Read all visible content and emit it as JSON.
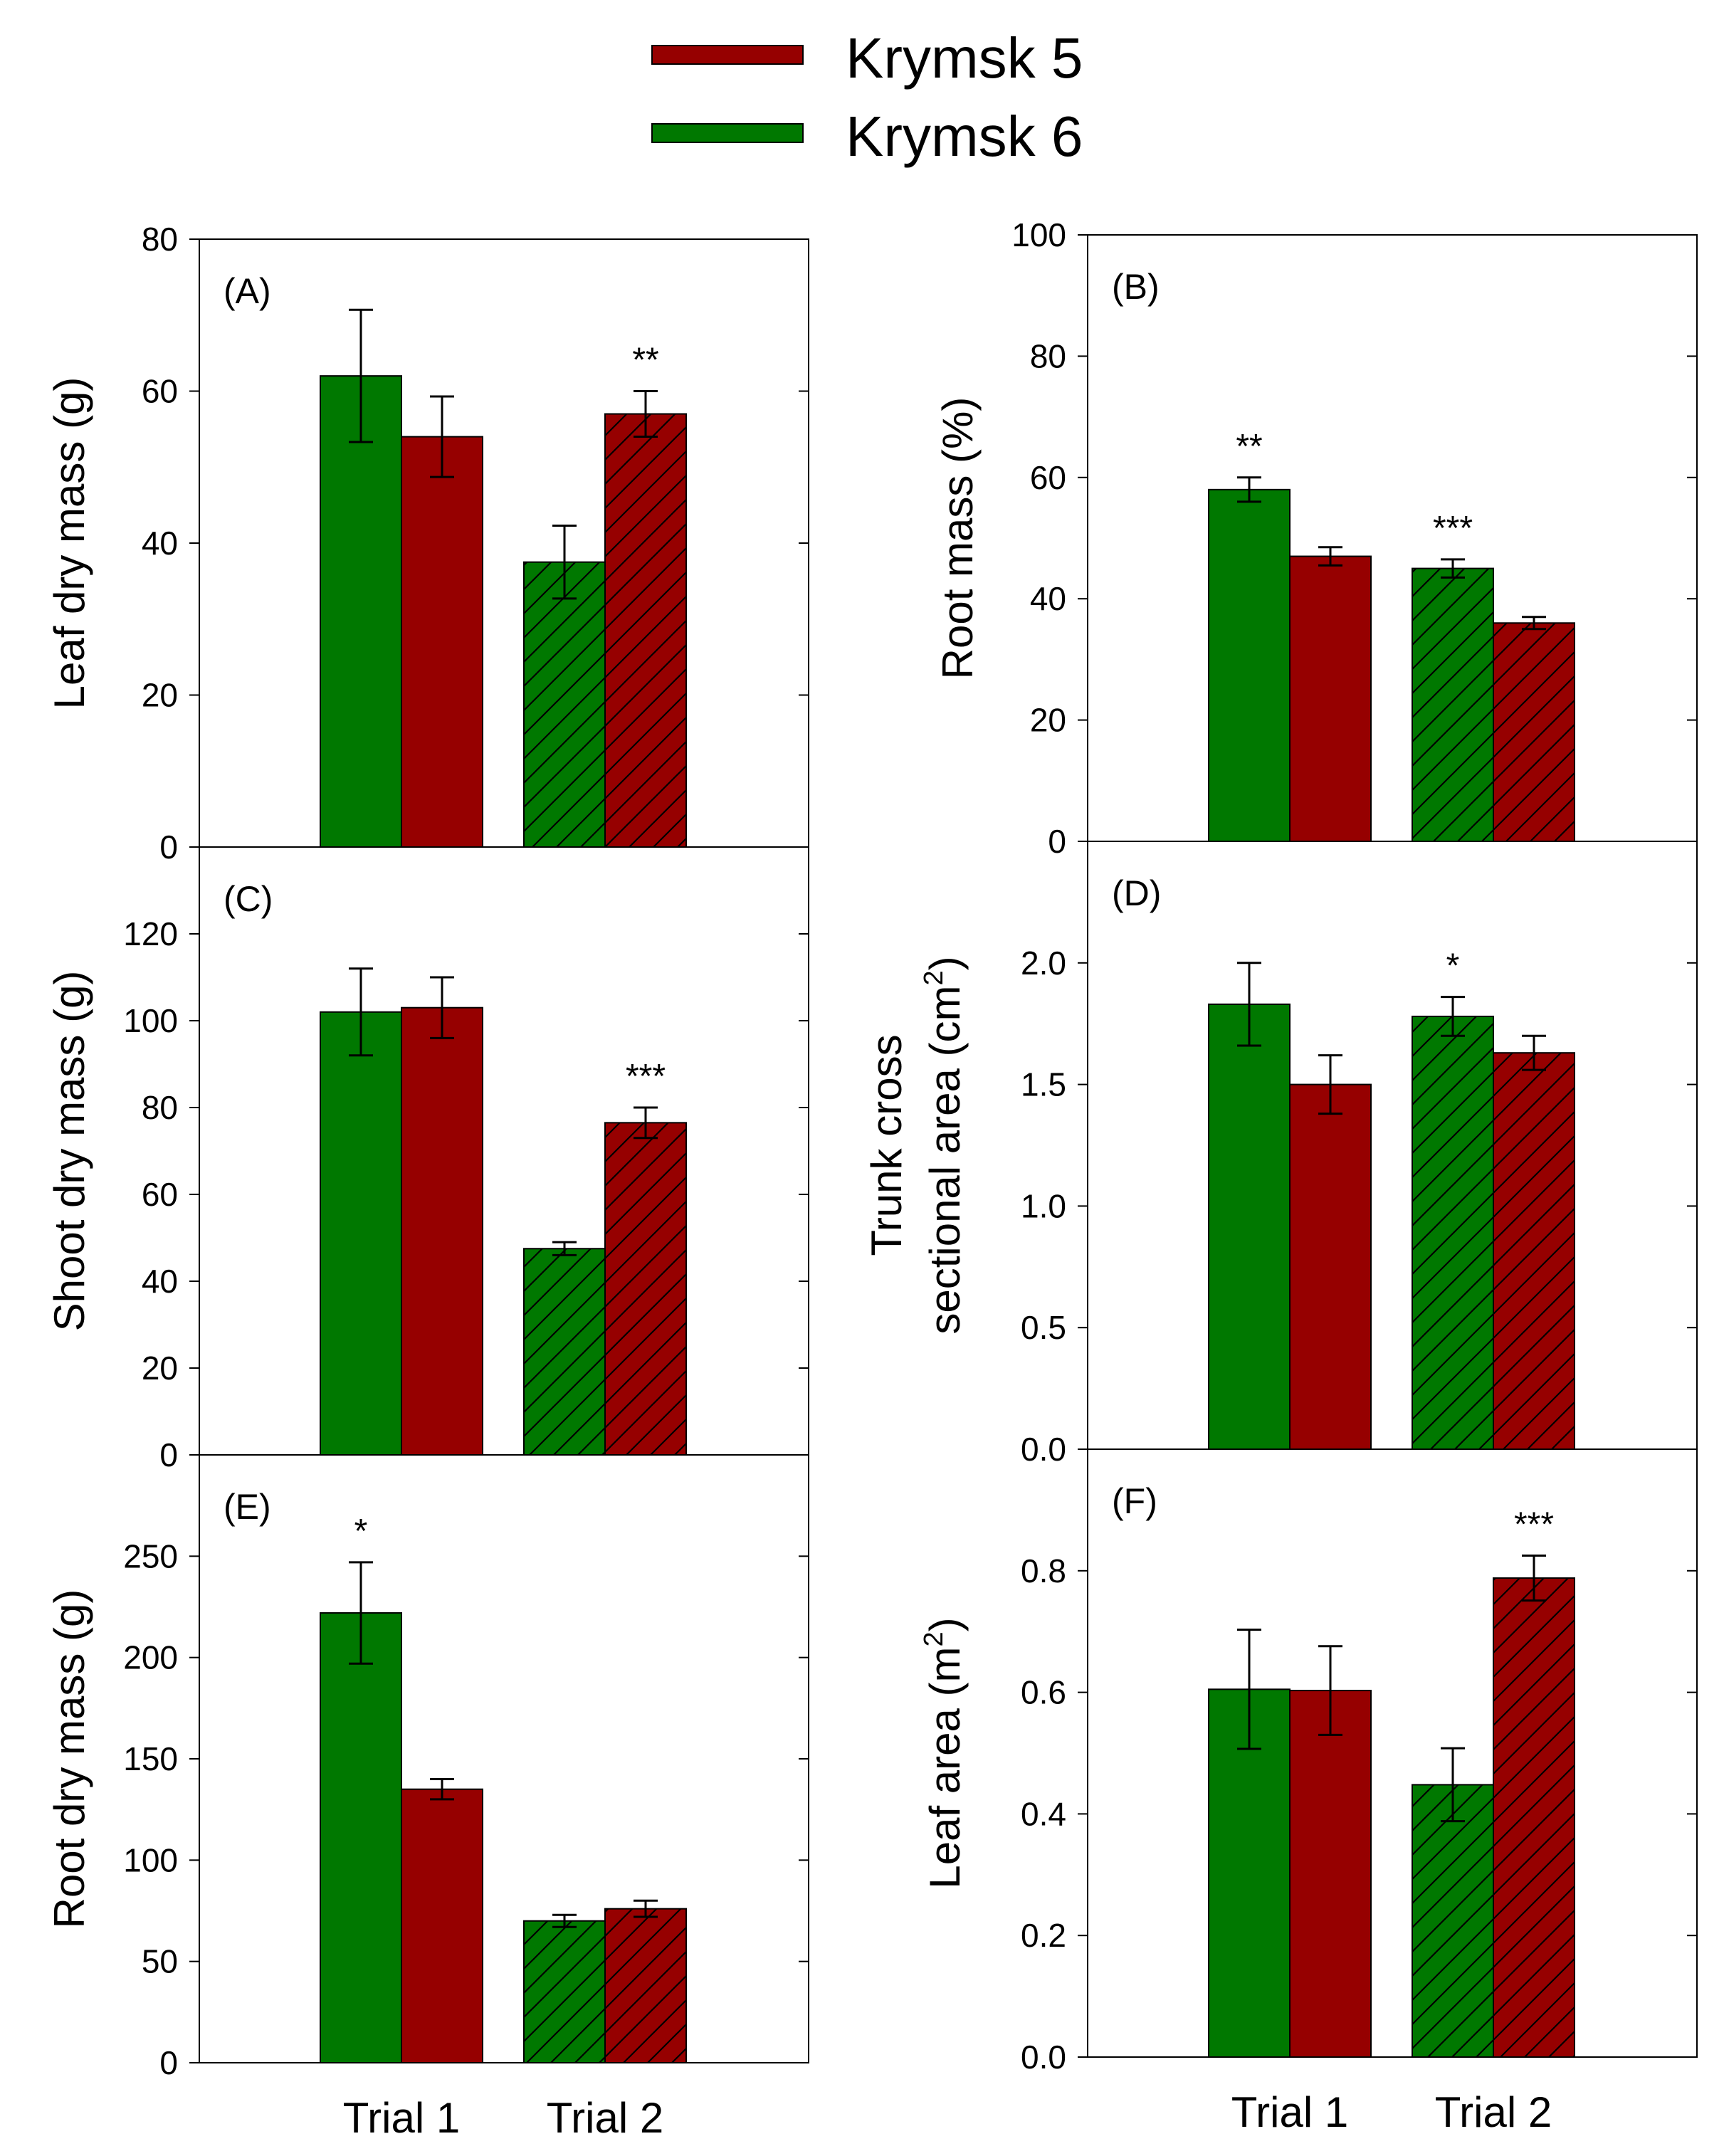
{
  "legend": {
    "entries": [
      {
        "name": "Krymsk 5",
        "color": "#960000"
      },
      {
        "name": "Krymsk 6",
        "color": "#007800"
      }
    ]
  },
  "colors": {
    "krymsk5": "#960000",
    "krymsk6": "#007800",
    "hatch": "#000000"
  },
  "chart_data": [
    {
      "type": "bar",
      "id": "A",
      "panel_label": "(A)",
      "categories": [
        "Trial 1",
        "Trial 2"
      ],
      "ylabel": "Leaf dry mass (g)",
      "ylim": [
        0,
        80
      ],
      "yticks": [
        0,
        20,
        40,
        60,
        80
      ],
      "tick_decimals": 0,
      "show_xlabels": false,
      "series": [
        {
          "name": "Krymsk 6",
          "values": [
            62,
            37.5
          ],
          "errors": [
            8.7,
            4.8
          ]
        },
        {
          "name": "Krymsk 5",
          "values": [
            54,
            57
          ],
          "errors": [
            5.3,
            3.0
          ]
        }
      ],
      "significance": [
        {
          "category": "Trial 2",
          "series": "Krymsk 5",
          "text": "**"
        }
      ]
    },
    {
      "type": "bar",
      "id": "B",
      "panel_label": "(B)",
      "categories": [
        "Trial 1",
        "Trial 2"
      ],
      "ylabel": "Root mass (%)",
      "ylim": [
        0,
        100
      ],
      "yticks": [
        0,
        20,
        40,
        60,
        80,
        100
      ],
      "tick_decimals": 0,
      "show_xlabels": false,
      "series": [
        {
          "name": "Krymsk 6",
          "values": [
            58,
            45
          ],
          "errors": [
            2,
            1.5
          ]
        },
        {
          "name": "Krymsk 5",
          "values": [
            47,
            36
          ],
          "errors": [
            1.5,
            1
          ]
        }
      ],
      "significance": [
        {
          "category": "Trial 1",
          "series": "Krymsk 6",
          "text": "**"
        },
        {
          "category": "Trial 2",
          "series": "Krymsk 6",
          "text": "***"
        }
      ]
    },
    {
      "type": "bar",
      "id": "C",
      "panel_label": "(C)",
      "categories": [
        "Trial 1",
        "Trial 2"
      ],
      "ylabel": "Shoot dry mass (g)",
      "ylim": [
        0,
        140
      ],
      "yticks": [
        0,
        20,
        40,
        60,
        80,
        100,
        120
      ],
      "tick_decimals": 0,
      "show_xlabels": false,
      "series": [
        {
          "name": "Krymsk 6",
          "values": [
            102,
            47.5
          ],
          "errors": [
            10,
            1.5
          ]
        },
        {
          "name": "Krymsk 5",
          "values": [
            103,
            76.5
          ],
          "errors": [
            7,
            3.5
          ]
        }
      ],
      "significance": [
        {
          "category": "Trial 2",
          "series": "Krymsk 5",
          "text": "***"
        }
      ]
    },
    {
      "type": "bar",
      "id": "D",
      "panel_label": "(D)",
      "categories": [
        "Trial 1",
        "Trial 2"
      ],
      "ylabel": "Trunk cross sectional area (cm²)",
      "ylabel_lines": [
        "Trunk cross",
        "sectional area (cm",
        "2",
        ")"
      ],
      "ylim": [
        0,
        2.5
      ],
      "yticks": [
        0,
        0.5,
        1.0,
        1.5,
        2.0
      ],
      "tick_decimals": 1,
      "show_xlabels": false,
      "series": [
        {
          "name": "Krymsk 6",
          "values": [
            1.83,
            1.78
          ],
          "errors": [
            0.17,
            0.08
          ]
        },
        {
          "name": "Krymsk 5",
          "values": [
            1.5,
            1.63
          ],
          "errors": [
            0.12,
            0.07
          ]
        }
      ],
      "significance": [
        {
          "category": "Trial 2",
          "series": "Krymsk 6",
          "text": "*"
        }
      ]
    },
    {
      "type": "bar",
      "id": "E",
      "panel_label": "(E)",
      "categories": [
        "Trial 1",
        "Trial 2"
      ],
      "ylabel": "Root dry mass (g)",
      "ylim": [
        0,
        300
      ],
      "yticks": [
        0,
        50,
        100,
        150,
        200,
        250
      ],
      "tick_decimals": 0,
      "show_xlabels": true,
      "series": [
        {
          "name": "Krymsk 6",
          "values": [
            222,
            70
          ],
          "errors": [
            25,
            3
          ]
        },
        {
          "name": "Krymsk 5",
          "values": [
            135,
            76
          ],
          "errors": [
            5,
            4
          ]
        }
      ],
      "significance": [
        {
          "category": "Trial 1",
          "series": "Krymsk 6",
          "text": "*"
        }
      ]
    },
    {
      "type": "bar",
      "id": "F",
      "panel_label": "(F)",
      "categories": [
        "Trial 1",
        "Trial 2"
      ],
      "ylabel": "Leaf area (m²)",
      "ylabel_lines": [
        "Leaf area (m",
        "2",
        ")"
      ],
      "ylim": [
        0,
        1.0
      ],
      "yticks": [
        0,
        0.2,
        0.4,
        0.6,
        0.8
      ],
      "tick_decimals": 1,
      "show_xlabels": true,
      "series": [
        {
          "name": "Krymsk 6",
          "values": [
            0.605,
            0.448
          ],
          "errors": [
            0.098,
            0.06
          ]
        },
        {
          "name": "Krymsk 5",
          "values": [
            0.603,
            0.788
          ],
          "errors": [
            0.073,
            0.037
          ]
        }
      ],
      "significance": [
        {
          "category": "Trial 2",
          "series": "Krymsk 5",
          "text": "***"
        }
      ]
    }
  ]
}
